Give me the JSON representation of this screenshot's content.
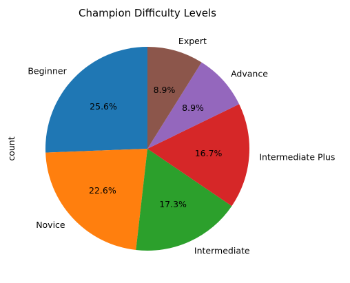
{
  "chart_data": {
    "type": "pie",
    "title": "Champion Difficulty Levels",
    "ylabel": "count",
    "start_angle_deg": 90,
    "direction": "counterclockwise",
    "slices": [
      {
        "label": "Beginner",
        "percent": 25.6,
        "display": "25.6%",
        "color": "#1f77b4"
      },
      {
        "label": "Novice",
        "percent": 22.6,
        "display": "22.6%",
        "color": "#ff7f0e"
      },
      {
        "label": "Intermediate",
        "percent": 17.3,
        "display": "17.3%",
        "color": "#2ca02c"
      },
      {
        "label": "Intermediate Plus",
        "percent": 16.7,
        "display": "16.7%",
        "color": "#d62728"
      },
      {
        "label": "Advance",
        "percent": 8.9,
        "display": "8.9%",
        "color": "#9467bd"
      },
      {
        "label": "Expert",
        "percent": 8.9,
        "display": "8.9%",
        "color": "#8c564b"
      }
    ]
  }
}
